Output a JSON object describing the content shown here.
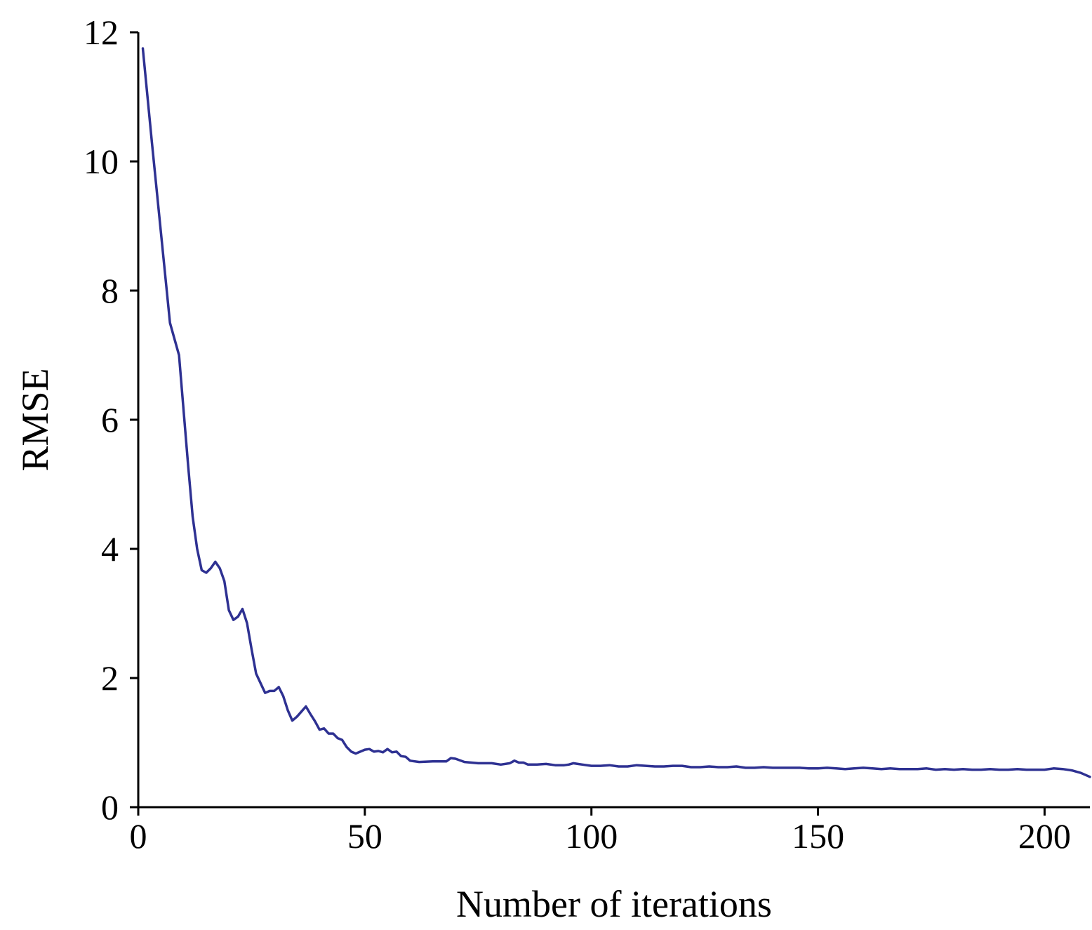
{
  "chart_data": {
    "type": "line",
    "title": "",
    "xlabel": "Number of iterations",
    "ylabel": "RMSE",
    "xlim": [
      0,
      210
    ],
    "ylim": [
      0,
      12
    ],
    "xticks": [
      0,
      50,
      100,
      150,
      200
    ],
    "yticks": [
      0,
      2,
      4,
      6,
      8,
      10,
      12
    ],
    "xtick_labels": [
      "0",
      "50",
      "100",
      "150",
      "200"
    ],
    "ytick_labels": [
      "0",
      "2",
      "4",
      "6",
      "8",
      "10",
      "12"
    ],
    "grid": false,
    "legend": "none",
    "series": [
      {
        "color": "#2e3192",
        "x": [
          1,
          3,
          5,
          7,
          9,
          11,
          12,
          13,
          14,
          15,
          16,
          17,
          18,
          19,
          20,
          21,
          22,
          23,
          24,
          25,
          26,
          27,
          28,
          29,
          30,
          31,
          32,
          33,
          34,
          35,
          36,
          37,
          38,
          39,
          40,
          41,
          42,
          43,
          44,
          45,
          46,
          47,
          48,
          49,
          50,
          51,
          52,
          53,
          54,
          55,
          56,
          57,
          58,
          59,
          60,
          62,
          65,
          68,
          69,
          70,
          72,
          75,
          78,
          80,
          82,
          83,
          84,
          85,
          86,
          88,
          90,
          92,
          94,
          95,
          96,
          97,
          98,
          100,
          102,
          104,
          106,
          108,
          110,
          112,
          114,
          116,
          118,
          120,
          122,
          124,
          126,
          128,
          130,
          132,
          134,
          136,
          138,
          140,
          142,
          144,
          146,
          148,
          150,
          152,
          154,
          156,
          158,
          160,
          162,
          164,
          166,
          168,
          170,
          172,
          174,
          176,
          178,
          180,
          182,
          184,
          186,
          188,
          190,
          192,
          194,
          196,
          198,
          200,
          202,
          204,
          206,
          208,
          210
        ],
        "y": [
          11.75,
          10.3,
          8.9,
          7.5,
          7.0,
          5.3,
          4.5,
          4.0,
          3.67,
          3.63,
          3.7,
          3.8,
          3.7,
          3.5,
          3.05,
          2.9,
          2.95,
          3.07,
          2.85,
          2.45,
          2.07,
          1.92,
          1.77,
          1.8,
          1.8,
          1.86,
          1.72,
          1.5,
          1.34,
          1.4,
          1.48,
          1.56,
          1.44,
          1.33,
          1.2,
          1.22,
          1.14,
          1.14,
          1.07,
          1.04,
          0.93,
          0.86,
          0.83,
          0.86,
          0.89,
          0.9,
          0.86,
          0.87,
          0.85,
          0.9,
          0.85,
          0.86,
          0.79,
          0.78,
          0.72,
          0.7,
          0.71,
          0.71,
          0.76,
          0.75,
          0.7,
          0.68,
          0.68,
          0.66,
          0.68,
          0.72,
          0.69,
          0.69,
          0.66,
          0.66,
          0.67,
          0.65,
          0.65,
          0.66,
          0.68,
          0.67,
          0.66,
          0.64,
          0.64,
          0.65,
          0.63,
          0.63,
          0.65,
          0.64,
          0.63,
          0.63,
          0.64,
          0.64,
          0.62,
          0.62,
          0.63,
          0.62,
          0.62,
          0.63,
          0.61,
          0.61,
          0.62,
          0.61,
          0.61,
          0.61,
          0.61,
          0.6,
          0.6,
          0.61,
          0.6,
          0.59,
          0.6,
          0.61,
          0.6,
          0.59,
          0.6,
          0.59,
          0.59,
          0.59,
          0.6,
          0.58,
          0.59,
          0.58,
          0.59,
          0.58,
          0.58,
          0.59,
          0.58,
          0.58,
          0.59,
          0.58,
          0.58,
          0.58,
          0.6,
          0.59,
          0.57,
          0.53,
          0.47
        ]
      }
    ]
  }
}
